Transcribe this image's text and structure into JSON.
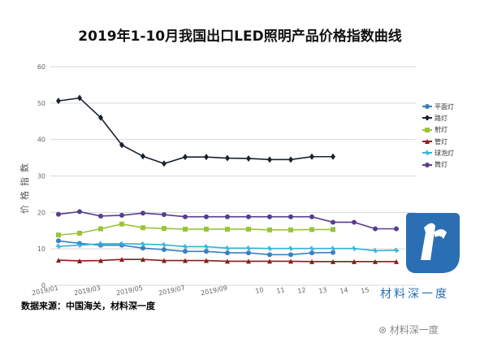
{
  "title": "2019年1-10月我国出口LED照明产品价格指数曲线",
  "source": "数据来源：中国海关，材料深一度",
  "watermark": {
    "logo_text": "材料深一度",
    "wechat_text": "材料深一度"
  },
  "chart_data": {
    "type": "line",
    "title": "2019年1-10月我国出口LED照明产品价格指数曲线",
    "ylabel": "价格指数",
    "xlabel": "",
    "ylim": [
      0,
      60
    ],
    "yticks": [
      "0",
      "10",
      "20",
      "30",
      "40",
      "50",
      "60"
    ],
    "x_tick_labels": [
      "2019/01",
      "2019/03",
      "2019/05",
      "2019/07",
      "2019/09",
      "10",
      "11",
      "12",
      "13",
      "14",
      "15"
    ],
    "grid": true,
    "legend_position": "right",
    "series": [
      {
        "name": "平面灯",
        "color": "#3a7fc4",
        "marker": "circle",
        "values": [
          12.2,
          11.5,
          11.0,
          11.0,
          10.2,
          9.8,
          9.3,
          9.3,
          8.9,
          8.9,
          8.4,
          8.4,
          8.9,
          9.0
        ]
      },
      {
        "name": "路灯",
        "color": "#1a2230",
        "marker": "diamond",
        "values": [
          50.6,
          51.4,
          46.0,
          38.5,
          35.4,
          33.4,
          35.2,
          35.2,
          34.9,
          34.8,
          34.5,
          34.5,
          35.3,
          35.3
        ]
      },
      {
        "name": "射灯",
        "color": "#9cc23a",
        "marker": "square",
        "values": [
          13.8,
          14.3,
          15.5,
          16.8,
          15.8,
          15.6,
          15.4,
          15.4,
          15.4,
          15.4,
          15.2,
          15.2,
          15.3,
          15.3
        ]
      },
      {
        "name": "管灯",
        "color": "#8a1c1c",
        "marker": "triangle",
        "values": [
          6.9,
          6.7,
          6.8,
          7.1,
          7.1,
          6.8,
          6.8,
          6.8,
          6.6,
          6.6,
          6.6,
          6.6,
          6.5,
          6.5,
          6.5,
          6.5,
          6.5
        ]
      },
      {
        "name": "球泡灯",
        "color": "#31b3d6",
        "marker": "star",
        "values": [
          10.7,
          11.0,
          11.4,
          11.4,
          11.3,
          11.1,
          10.6,
          10.6,
          10.2,
          10.2,
          10.1,
          10.1,
          10.1,
          10.1,
          10.1,
          9.5,
          9.6
        ]
      },
      {
        "name": "筒灯",
        "color": "#5a3c8e",
        "marker": "circle",
        "values": [
          19.5,
          20.2,
          19.0,
          19.2,
          19.8,
          19.4,
          18.8,
          18.8,
          18.8,
          18.8,
          18.8,
          18.8,
          18.8,
          17.3,
          17.3,
          15.5,
          15.5
        ]
      }
    ]
  }
}
